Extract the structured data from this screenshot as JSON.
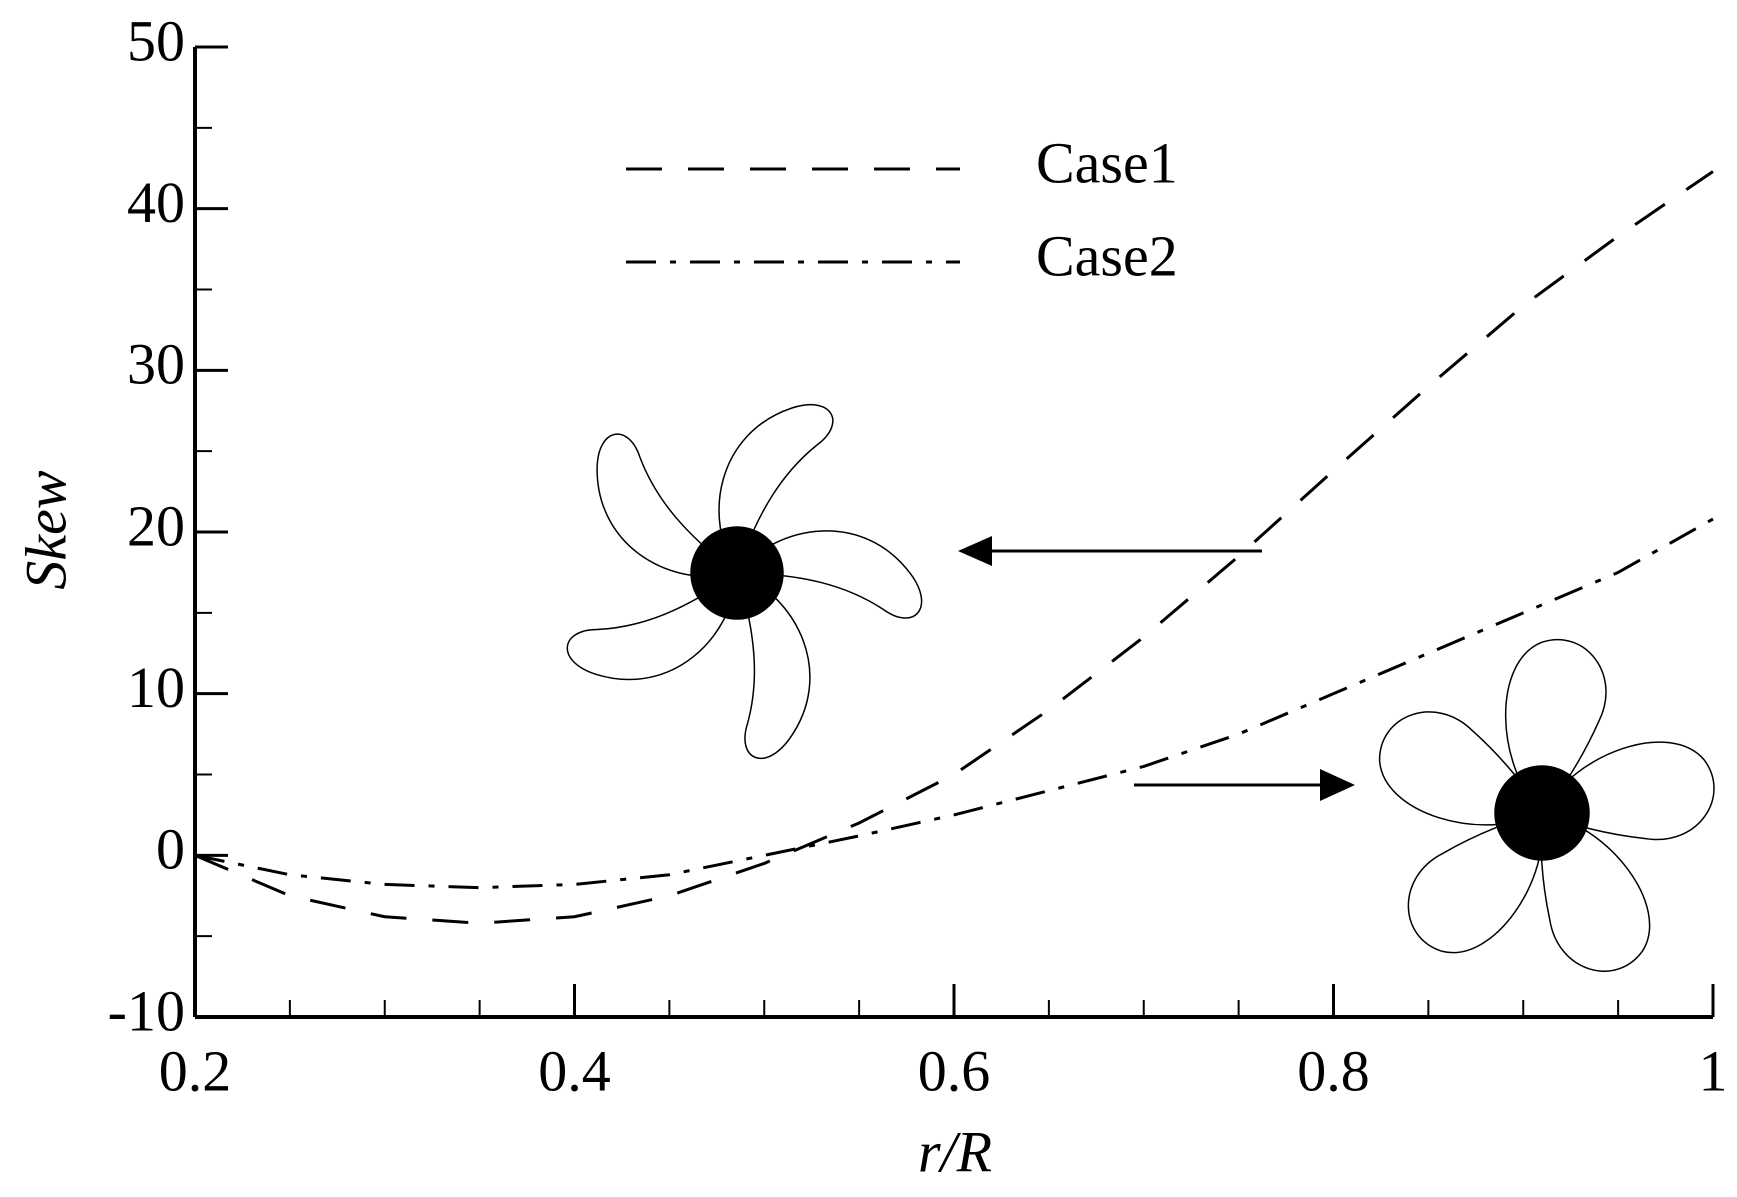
{
  "chart_data": {
    "type": "line",
    "x": [
      0.2,
      0.25,
      0.3,
      0.35,
      0.4,
      0.45,
      0.5,
      0.55,
      0.6,
      0.65,
      0.7,
      0.75,
      0.8,
      0.85,
      0.9,
      0.95,
      1.0
    ],
    "series": [
      {
        "name": "Case1",
        "color": "#000000",
        "dash": "dashed",
        "values": [
          0,
          -2.5,
          -3.8,
          -4.2,
          -3.8,
          -2.5,
          -0.5,
          2,
          5,
          9,
          13.5,
          18.5,
          23.8,
          29,
          34,
          38.3,
          42.3
        ]
      },
      {
        "name": "Case2",
        "color": "#000000",
        "dash": "dashdot",
        "values": [
          0,
          -1.2,
          -1.8,
          -2,
          -1.8,
          -1.2,
          0,
          1.2,
          2.5,
          4,
          5.5,
          7.5,
          10,
          12.5,
          15,
          17.5,
          20.8
        ]
      }
    ],
    "xlabel": "r/R",
    "ylabel": "Skew",
    "xlim": [
      0.2,
      1
    ],
    "ylim": [
      -10,
      50
    ],
    "xticks": [
      0.2,
      0.4,
      0.6,
      0.8,
      1
    ],
    "yticks": [
      -10,
      0,
      10,
      20,
      30,
      40,
      50
    ]
  }
}
